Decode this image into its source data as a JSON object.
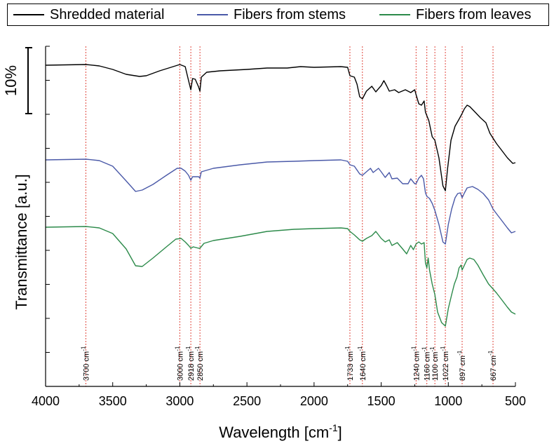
{
  "chart_data": {
    "type": "line",
    "xlabel": "Wavelength [cm",
    "xlabel_sup": "-1",
    "xlabel_end": "]",
    "ylabel": "Transmittance [a.u.]",
    "xlim": [
      4000,
      500
    ],
    "x_reversed": true,
    "x_ticks": [
      4000,
      3500,
      3000,
      2500,
      2000,
      1500,
      1000,
      500
    ],
    "x_tick_labels": [
      "4000",
      "3500",
      "3000",
      "2500",
      "2000",
      "1500",
      "1000",
      "500"
    ],
    "y_ticks_count": 10,
    "y_tick_labels": false,
    "grid": false,
    "legend_position": "top",
    "scale_bar_label": "10%",
    "reference_lines": [
      {
        "x": 3700,
        "label": "3700 cm",
        "sup": "-1"
      },
      {
        "x": 3000,
        "label": "3000 cm",
        "sup": "-1"
      },
      {
        "x": 2918,
        "label": "2918 cm",
        "sup": "-1"
      },
      {
        "x": 2850,
        "label": "2850 cm",
        "sup": "-1"
      },
      {
        "x": 1733,
        "label": "1733 cm",
        "sup": "-1"
      },
      {
        "x": 1640,
        "label": "1640 cm",
        "sup": "-1"
      },
      {
        "x": 1240,
        "label": "1240 cm",
        "sup": "-1"
      },
      {
        "x": 1160,
        "label": "1160 cm",
        "sup": "-1"
      },
      {
        "x": 1100,
        "label": "1100 cm",
        "sup": "-1"
      },
      {
        "x": 1022,
        "label": "1022 cm",
        "sup": "-1"
      },
      {
        "x": 897,
        "label": "897 cm",
        "sup": "-1"
      },
      {
        "x": 667,
        "label": "667 cm",
        "sup": "-1"
      }
    ],
    "reference_line_color": "#e0463c",
    "series": [
      {
        "name": "Shredded material",
        "color": "#000000",
        "points": [
          [
            4000,
            93
          ],
          [
            3700,
            92
          ],
          [
            3600,
            94
          ],
          [
            3500,
            99
          ],
          [
            3400,
            106
          ],
          [
            3300,
            109
          ],
          [
            3250,
            108
          ],
          [
            3150,
            101
          ],
          [
            3050,
            95
          ],
          [
            3000,
            92
          ],
          [
            2960,
            95
          ],
          [
            2935,
            115
          ],
          [
            2918,
            128
          ],
          [
            2905,
            112
          ],
          [
            2885,
            113
          ],
          [
            2860,
            124
          ],
          [
            2850,
            130
          ],
          [
            2840,
            110
          ],
          [
            2800,
            103
          ],
          [
            2700,
            101
          ],
          [
            2500,
            99
          ],
          [
            2350,
            97
          ],
          [
            2200,
            97
          ],
          [
            2100,
            95
          ],
          [
            2000,
            96
          ],
          [
            1800,
            95
          ],
          [
            1750,
            96
          ],
          [
            1733,
            108
          ],
          [
            1700,
            110
          ],
          [
            1680,
            120
          ],
          [
            1660,
            138
          ],
          [
            1640,
            141
          ],
          [
            1610,
            130
          ],
          [
            1570,
            123
          ],
          [
            1540,
            131
          ],
          [
            1500,
            122
          ],
          [
            1480,
            115
          ],
          [
            1460,
            122
          ],
          [
            1440,
            130
          ],
          [
            1400,
            128
          ],
          [
            1370,
            132
          ],
          [
            1320,
            128
          ],
          [
            1280,
            132
          ],
          [
            1250,
            128
          ],
          [
            1240,
            135
          ],
          [
            1220,
            148
          ],
          [
            1200,
            150
          ],
          [
            1180,
            144
          ],
          [
            1170,
            160
          ],
          [
            1160,
            165
          ],
          [
            1145,
            172
          ],
          [
            1120,
            195
          ],
          [
            1100,
            200
          ],
          [
            1070,
            225
          ],
          [
            1040,
            265
          ],
          [
            1022,
            272
          ],
          [
            1005,
            240
          ],
          [
            980,
            200
          ],
          [
            950,
            180
          ],
          [
            920,
            170
          ],
          [
            900,
            163
          ],
          [
            880,
            155
          ],
          [
            860,
            150
          ],
          [
            840,
            152
          ],
          [
            800,
            160
          ],
          [
            760,
            168
          ],
          [
            720,
            175
          ],
          [
            690,
            190
          ],
          [
            667,
            197
          ],
          [
            640,
            205
          ],
          [
            600,
            215
          ],
          [
            560,
            225
          ],
          [
            520,
            233
          ],
          [
            500,
            232
          ]
        ]
      },
      {
        "name": "Fibers from stems",
        "color": "#4a59a8",
        "points": [
          [
            4000,
            228
          ],
          [
            3700,
            227
          ],
          [
            3600,
            229
          ],
          [
            3500,
            237
          ],
          [
            3400,
            258
          ],
          [
            3330,
            273
          ],
          [
            3280,
            271
          ],
          [
            3200,
            263
          ],
          [
            3100,
            250
          ],
          [
            3020,
            240
          ],
          [
            2990,
            240
          ],
          [
            2960,
            244
          ],
          [
            2935,
            250
          ],
          [
            2918,
            257
          ],
          [
            2905,
            252
          ],
          [
            2880,
            252
          ],
          [
            2860,
            252
          ],
          [
            2850,
            254
          ],
          [
            2840,
            245
          ],
          [
            2750,
            240
          ],
          [
            2550,
            235
          ],
          [
            2350,
            231
          ],
          [
            2150,
            230
          ],
          [
            2000,
            229
          ],
          [
            1800,
            228
          ],
          [
            1750,
            230
          ],
          [
            1733,
            235
          ],
          [
            1700,
            237
          ],
          [
            1660,
            248
          ],
          [
            1640,
            250
          ],
          [
            1610,
            245
          ],
          [
            1580,
            240
          ],
          [
            1560,
            246
          ],
          [
            1520,
            240
          ],
          [
            1500,
            245
          ],
          [
            1470,
            253
          ],
          [
            1440,
            246
          ],
          [
            1420,
            255
          ],
          [
            1380,
            254
          ],
          [
            1340,
            262
          ],
          [
            1300,
            262
          ],
          [
            1280,
            255
          ],
          [
            1250,
            262
          ],
          [
            1240,
            262
          ],
          [
            1220,
            254
          ],
          [
            1200,
            250
          ],
          [
            1185,
            255
          ],
          [
            1170,
            275
          ],
          [
            1160,
            280
          ],
          [
            1140,
            283
          ],
          [
            1120,
            290
          ],
          [
            1100,
            300
          ],
          [
            1070,
            320
          ],
          [
            1040,
            345
          ],
          [
            1022,
            348
          ],
          [
            1000,
            320
          ],
          [
            975,
            298
          ],
          [
            950,
            282
          ],
          [
            930,
            276
          ],
          [
            910,
            275
          ],
          [
            897,
            282
          ],
          [
            880,
            275
          ],
          [
            860,
            268
          ],
          [
            820,
            266
          ],
          [
            780,
            270
          ],
          [
            740,
            276
          ],
          [
            700,
            285
          ],
          [
            667,
            298
          ],
          [
            640,
            305
          ],
          [
            600,
            315
          ],
          [
            560,
            325
          ],
          [
            530,
            332
          ],
          [
            500,
            330
          ]
        ]
      },
      {
        "name": "Fibers from leaves",
        "color": "#2c8a4a",
        "points": [
          [
            4000,
            324
          ],
          [
            3700,
            323
          ],
          [
            3600,
            325
          ],
          [
            3500,
            333
          ],
          [
            3400,
            355
          ],
          [
            3330,
            379
          ],
          [
            3280,
            380
          ],
          [
            3200,
            368
          ],
          [
            3100,
            352
          ],
          [
            3030,
            341
          ],
          [
            2990,
            340
          ],
          [
            2960,
            345
          ],
          [
            2935,
            350
          ],
          [
            2918,
            354
          ],
          [
            2900,
            352
          ],
          [
            2880,
            353
          ],
          [
            2860,
            354
          ],
          [
            2850,
            354
          ],
          [
            2820,
            347
          ],
          [
            2750,
            343
          ],
          [
            2550,
            337
          ],
          [
            2350,
            330
          ],
          [
            2150,
            327
          ],
          [
            2000,
            326
          ],
          [
            1800,
            325
          ],
          [
            1750,
            326
          ],
          [
            1733,
            330
          ],
          [
            1700,
            335
          ],
          [
            1660,
            342
          ],
          [
            1640,
            344
          ],
          [
            1610,
            340
          ],
          [
            1570,
            336
          ],
          [
            1540,
            330
          ],
          [
            1500,
            340
          ],
          [
            1470,
            345
          ],
          [
            1440,
            342
          ],
          [
            1420,
            350
          ],
          [
            1380,
            346
          ],
          [
            1340,
            355
          ],
          [
            1310,
            362
          ],
          [
            1280,
            350
          ],
          [
            1260,
            356
          ],
          [
            1240,
            348
          ],
          [
            1220,
            345
          ],
          [
            1200,
            348
          ],
          [
            1180,
            346
          ],
          [
            1170,
            375
          ],
          [
            1160,
            382
          ],
          [
            1150,
            368
          ],
          [
            1140,
            385
          ],
          [
            1120,
            405
          ],
          [
            1100,
            420
          ],
          [
            1080,
            445
          ],
          [
            1050,
            460
          ],
          [
            1022,
            465
          ],
          [
            1000,
            440
          ],
          [
            975,
            420
          ],
          [
            955,
            405
          ],
          [
            935,
            395
          ],
          [
            920,
            382
          ],
          [
            905,
            378
          ],
          [
            897,
            385
          ],
          [
            880,
            378
          ],
          [
            860,
            370
          ],
          [
            840,
            368
          ],
          [
            810,
            370
          ],
          [
            780,
            378
          ],
          [
            740,
            392
          ],
          [
            700,
            405
          ],
          [
            667,
            412
          ],
          [
            640,
            418
          ],
          [
            600,
            428
          ],
          [
            560,
            438
          ],
          [
            530,
            445
          ],
          [
            500,
            448
          ]
        ]
      }
    ]
  }
}
